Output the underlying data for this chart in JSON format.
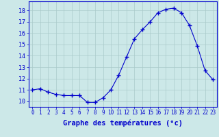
{
  "x": [
    0,
    1,
    2,
    3,
    4,
    5,
    6,
    7,
    8,
    9,
    10,
    11,
    12,
    13,
    14,
    15,
    16,
    17,
    18,
    19,
    20,
    21,
    22,
    23
  ],
  "y": [
    11.0,
    11.1,
    10.8,
    10.6,
    10.5,
    10.5,
    10.5,
    9.9,
    9.9,
    10.3,
    11.0,
    12.3,
    13.9,
    15.5,
    16.3,
    17.0,
    17.8,
    18.1,
    18.2,
    17.8,
    16.7,
    14.9,
    12.7,
    11.9
  ],
  "line_color": "#0000cc",
  "marker": "+",
  "marker_color": "#0000cc",
  "bg_color": "#cce8e8",
  "grid_color": "#aacaca",
  "axis_color": "#0000cc",
  "xlabel": "Graphe des températures (°c)",
  "xlabel_fontsize": 7.5,
  "ylabel_ticks": [
    10,
    11,
    12,
    13,
    14,
    15,
    16,
    17,
    18
  ],
  "xlim": [
    -0.5,
    23.5
  ],
  "ylim": [
    9.5,
    18.8
  ],
  "tick_fontsize": 5.5,
  "ytick_fontsize": 6.0
}
